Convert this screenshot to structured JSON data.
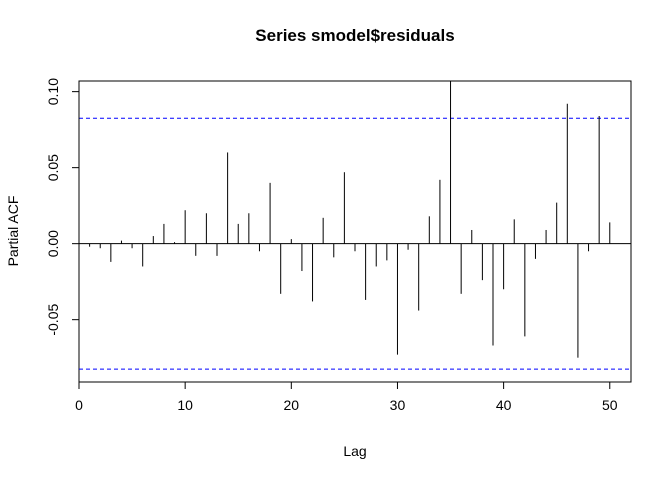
{
  "chart_data": {
    "type": "bar",
    "title": "Series  smodel$residuals",
    "xlabel": "Lag",
    "ylabel": "Partial ACF",
    "xlim": [
      0,
      52
    ],
    "ylim": [
      -0.091,
      0.107
    ],
    "x_ticks": [
      0,
      10,
      20,
      30,
      40,
      50
    ],
    "x_tick_labels": [
      "0",
      "10",
      "20",
      "30",
      "40",
      "50"
    ],
    "y_ticks": [
      -0.05,
      0.0,
      0.05,
      0.1
    ],
    "y_tick_labels": [
      "-0.05",
      "0.00",
      "0.05",
      "0.10"
    ],
    "confidence_bound": 0.0825,
    "confidence_color": "#0000ff",
    "grid": false,
    "lags": [
      1,
      2,
      3,
      4,
      5,
      6,
      7,
      8,
      9,
      10,
      11,
      12,
      13,
      14,
      15,
      16,
      17,
      18,
      19,
      20,
      21,
      22,
      23,
      24,
      25,
      26,
      27,
      28,
      29,
      30,
      31,
      32,
      33,
      34,
      35,
      36,
      37,
      38,
      39,
      40,
      41,
      42,
      43,
      44,
      45,
      46,
      47,
      48,
      49,
      50
    ],
    "values": [
      -0.002,
      -0.003,
      -0.012,
      0.002,
      -0.003,
      -0.015,
      0.005,
      0.013,
      0.001,
      0.022,
      -0.008,
      0.02,
      -0.008,
      0.06,
      0.013,
      0.02,
      -0.005,
      0.04,
      -0.033,
      0.003,
      -0.018,
      -0.038,
      0.017,
      -0.009,
      0.047,
      -0.005,
      -0.037,
      -0.015,
      -0.011,
      -0.073,
      -0.004,
      -0.044,
      0.018,
      0.042,
      0.107,
      -0.033,
      0.009,
      -0.024,
      -0.067,
      -0.03,
      0.016,
      -0.061,
      -0.01,
      0.009,
      0.027,
      0.092,
      -0.075,
      -0.005,
      0.084,
      0.014
    ]
  }
}
